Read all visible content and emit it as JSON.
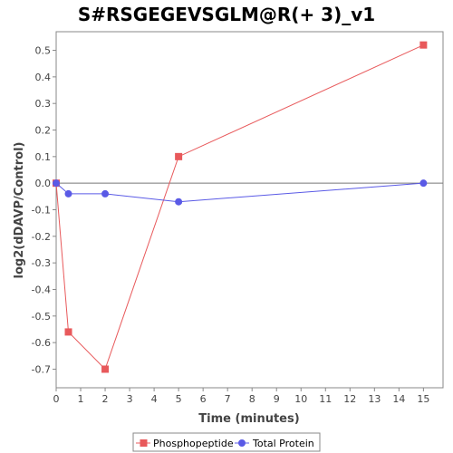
{
  "chart_data": {
    "type": "line",
    "title": "S#RSGEGEVSGLM@R(+ 3)_v1",
    "xlabel": "Time (minutes)",
    "ylabel": "log2(dDAVP/Control)",
    "xlim": [
      0,
      15.8
    ],
    "ylim": [
      -0.77,
      0.57
    ],
    "xticks": [
      0,
      1,
      2,
      3,
      4,
      5,
      6,
      7,
      8,
      9,
      10,
      11,
      12,
      13,
      14,
      15
    ],
    "yticks": [
      0.5,
      0.4,
      0.3,
      0.2,
      0.1,
      0.0,
      -0.1,
      -0.2,
      -0.3,
      -0.4,
      -0.5,
      -0.6,
      -0.7
    ],
    "ytick_labels": [
      "0.5",
      "0.4",
      "0.3",
      "0.2",
      "0.1",
      "0.0",
      "-0.1",
      "-0.2",
      "-0.3",
      "-0.4",
      "-0.5",
      "-0.6",
      "-0.7"
    ],
    "zero_line": true,
    "grid": false,
    "legend_position": "bottom",
    "series": [
      {
        "name": "Phosphopeptide",
        "color": "#e8595b",
        "marker": "square",
        "x": [
          0,
          0.5,
          2,
          5,
          15
        ],
        "y": [
          0.0,
          -0.56,
          -0.7,
          0.1,
          0.52
        ]
      },
      {
        "name": "Total Protein",
        "color": "#5a5ae6",
        "marker": "circle",
        "x": [
          0,
          0.5,
          2,
          5,
          15
        ],
        "y": [
          0.0,
          -0.04,
          -0.04,
          -0.07,
          0.0
        ]
      }
    ]
  }
}
